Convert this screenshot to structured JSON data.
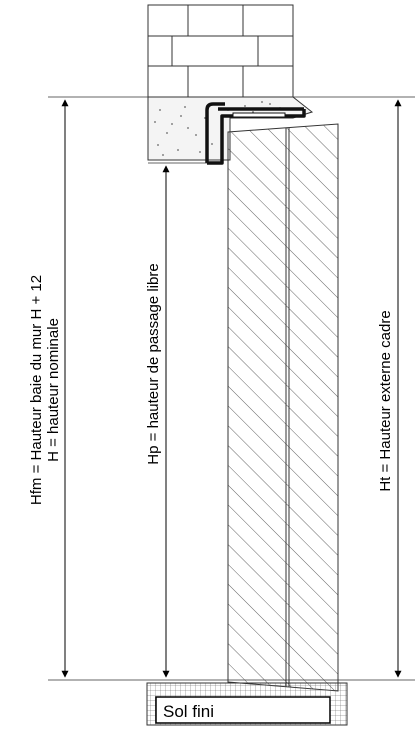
{
  "labels": {
    "hfm_line1": "Hfm = Hauteur baie du mur H + 12",
    "hfm_line2": "H = hauteur nominale",
    "hp": "Hp = hauteur de passage libre",
    "ht": "Ht = Hauteur externe cadre",
    "floor": "Sol fini"
  }
}
